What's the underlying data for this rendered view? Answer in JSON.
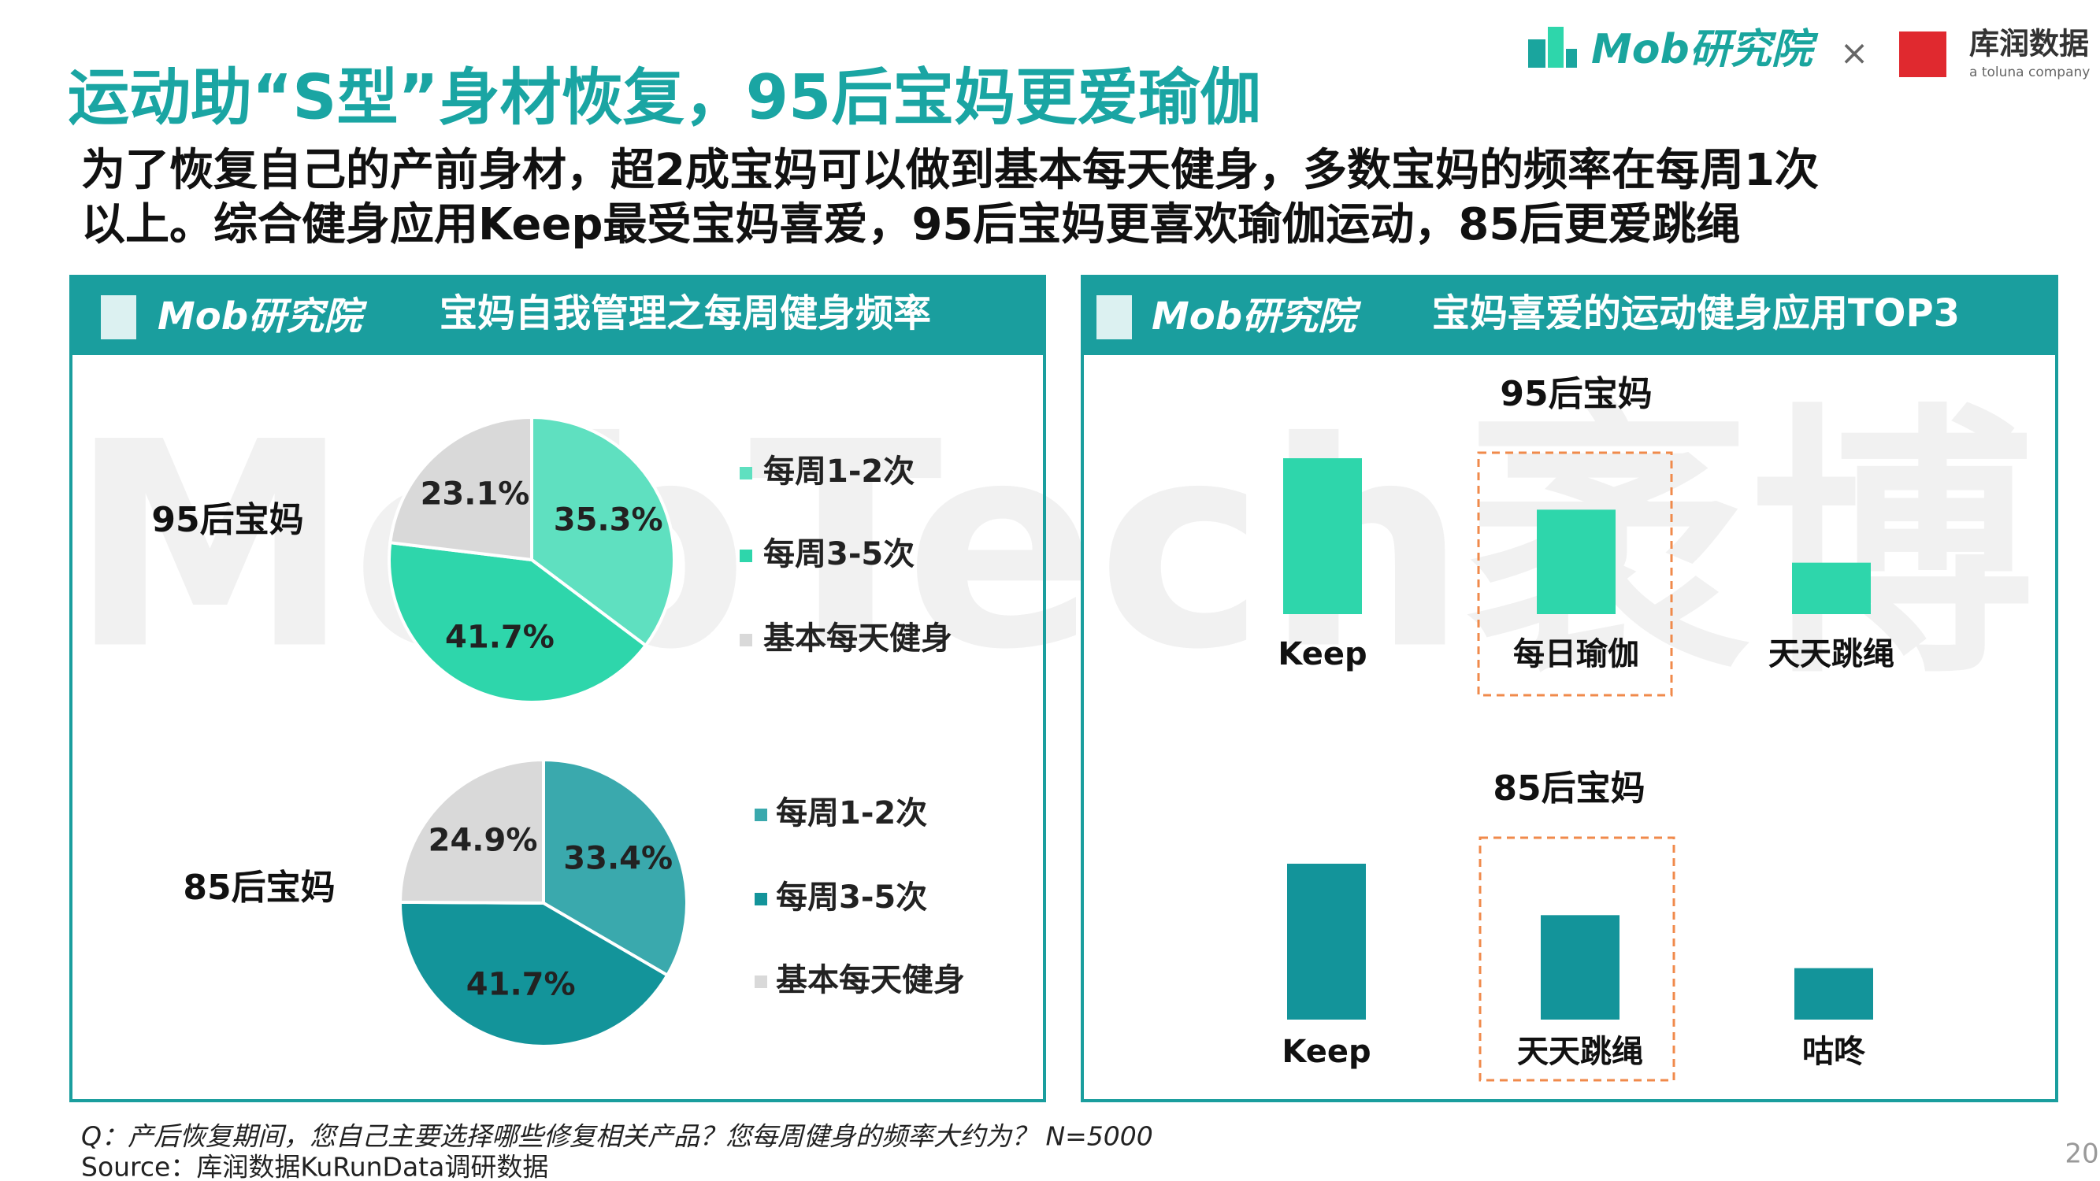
{
  "header": {
    "title": "运动助“S型”身材恢复，95后宝妈更爱瑜伽",
    "subtitle_lines": [
      "为了恢复自己的产前身材，超2成宝妈可以做到基本每天健身，多数宝妈的频率在每周1次",
      "以上。综合健身应用Keep最受宝妈喜爱，95后宝妈更喜欢瑜伽运动，85后更爱跳绳"
    ],
    "brand": "Mob研究院",
    "times": "×",
    "partner": "库润数据",
    "partner_tagline": "a toluna company"
  },
  "watermark": "MobTech袤博",
  "panels": [
    {
      "brand": "Mob研究院",
      "title": "宝妈自我管理之每周健身频率"
    },
    {
      "brand": "Mob研究院",
      "title": "宝妈喜爱的运动健身应用TOP3"
    }
  ],
  "chart_data": [
    {
      "type": "pie",
      "title": "95后宝妈",
      "categories": [
        "每周1-2次",
        "每周3-5次",
        "基本每天健身"
      ],
      "values": [
        35.3,
        41.7,
        23.1
      ],
      "value_labels": [
        "35.3%",
        "41.7%",
        "23.1%"
      ],
      "colors": [
        "#5fe0c0",
        "#2ed6ab",
        "#d9d9d9"
      ]
    },
    {
      "type": "pie",
      "title": "85后宝妈",
      "categories": [
        "每周1-2次",
        "每周3-5次",
        "基本每天健身"
      ],
      "values": [
        33.4,
        41.7,
        24.9
      ],
      "value_labels": [
        "33.4%",
        "41.7%",
        "24.9%"
      ],
      "colors": [
        "#3aa9ad",
        "#13949a",
        "#d9d9d9"
      ]
    },
    {
      "type": "bar",
      "title": "95后宝妈",
      "categories": [
        "Keep",
        "每日瑜伽",
        "天天跳绳"
      ],
      "values": [
        100,
        67,
        33
      ],
      "color": "#2ed6ab",
      "ylim": [
        0,
        100
      ],
      "highlight": 1
    },
    {
      "type": "bar",
      "title": "85后宝妈",
      "categories": [
        "Keep",
        "天天跳绳",
        "咕咚"
      ],
      "values": [
        100,
        67,
        33
      ],
      "color": "#13949a",
      "ylim": [
        0,
        100
      ],
      "highlight": 1
    }
  ],
  "footer": {
    "question": "Q：产后恢复期间，您自己主要选择哪些修复相关产品？您每周健身的频率大约为？ N=5000",
    "source": "Source：库润数据KuRunData调研数据",
    "page": "20"
  }
}
